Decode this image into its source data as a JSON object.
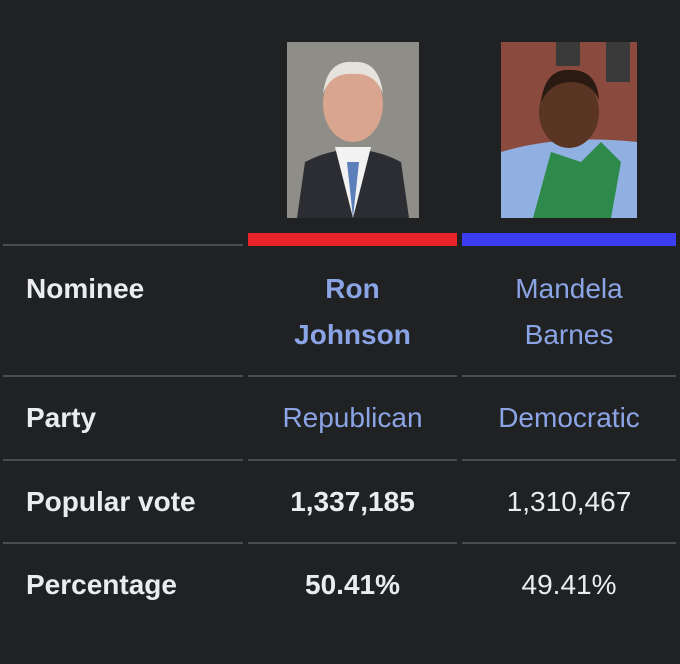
{
  "table": {
    "row_labels": [
      "Nominee",
      "Party",
      "Popular vote",
      "Percentage"
    ],
    "candidates": [
      {
        "name_lines": [
          "Ron",
          "Johnson"
        ],
        "party": "Republican",
        "popular_vote": "1,337,185",
        "percentage": "50.41%",
        "color": "#e8232a"
      },
      {
        "name_lines": [
          "Mandela",
          "Barnes"
        ],
        "party": "Democratic",
        "popular_vote": "1,310,467",
        "percentage": "49.41%",
        "color": "#3c3cf0"
      }
    ]
  }
}
